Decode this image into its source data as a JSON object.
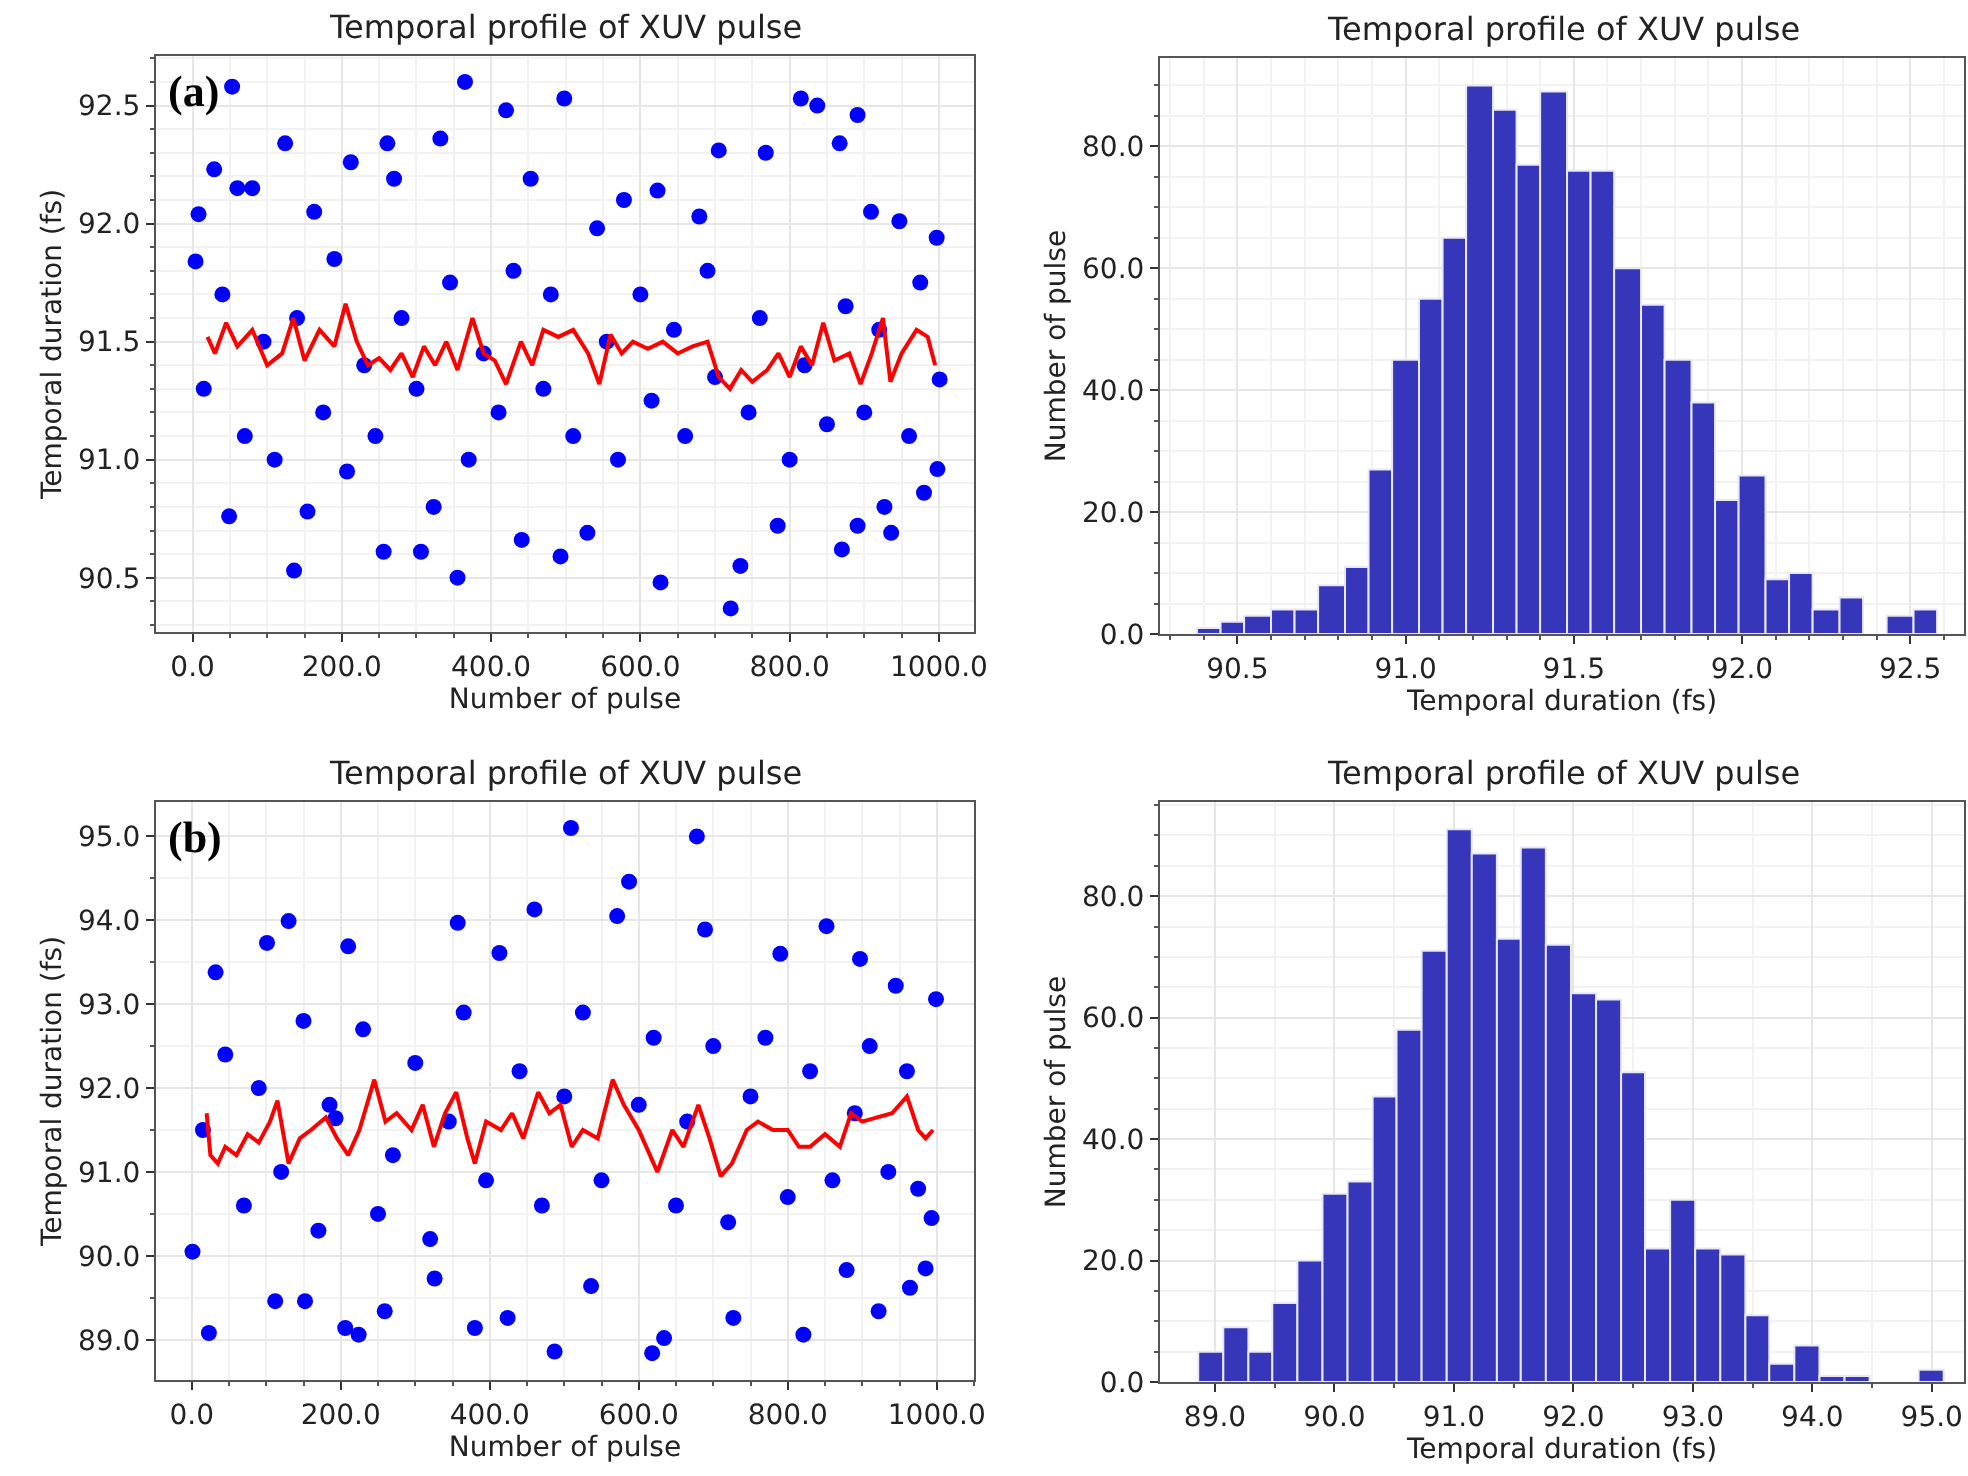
{
  "chart_data": [
    {
      "type": "scatter",
      "title": "Temporal profile of XUV pulse",
      "xlabel": "Number of pulse",
      "ylabel": "Temporal duration (fs)",
      "annotations": [
        "(a)"
      ],
      "grid": true,
      "xlim": [
        -49,
        1047
      ],
      "ylim": [
        90.27,
        92.71
      ],
      "xticks": [
        {
          "value": 0,
          "label": "0.0"
        },
        {
          "value": 200,
          "label": "200.0"
        },
        {
          "value": 400,
          "label": "400.0"
        },
        {
          "value": 600,
          "label": "600.0"
        },
        {
          "value": 800,
          "label": "800.0"
        },
        {
          "value": 1000,
          "label": "1000.0"
        }
      ],
      "yticks": [
        {
          "value": 90.5,
          "label": "90.5"
        },
        {
          "value": 91.0,
          "label": "91.0"
        },
        {
          "value": 91.5,
          "label": "91.5"
        },
        {
          "value": 92.0,
          "label": "92.0"
        },
        {
          "value": 92.5,
          "label": "92.5"
        }
      ],
      "series": [
        {
          "type": "scatter",
          "marker": "circle",
          "color": "#0000ff",
          "x": [
            4,
            8,
            15,
            29,
            40,
            49,
            53,
            60,
            70,
            80,
            95,
            110,
            124,
            136,
            140,
            154,
            163,
            175,
            190,
            207,
            212,
            230,
            245,
            256,
            261,
            270,
            280,
            300,
            306,
            323,
            332,
            345,
            355,
            365,
            370,
            390,
            410,
            420,
            430,
            441,
            453,
            470,
            480,
            493,
            498,
            510,
            529,
            542,
            555,
            570,
            578,
            600,
            615,
            623,
            627,
            645,
            660,
            679,
            690,
            700,
            705,
            721,
            734,
            745,
            760,
            768,
            784,
            800,
            815,
            820,
            837,
            850,
            867,
            870,
            875,
            891,
            891,
            900,
            909,
            920,
            927,
            936,
            947,
            960,
            975,
            980,
            997,
            998,
            1001
          ],
          "values": [
            91.84,
            92.04,
            91.3,
            92.23,
            91.7,
            90.76,
            92.58,
            92.15,
            91.1,
            92.15,
            91.5,
            91.0,
            92.34,
            90.53,
            91.6,
            90.78,
            92.05,
            91.2,
            91.85,
            90.95,
            92.26,
            91.4,
            91.1,
            90.61,
            92.34,
            92.19,
            91.6,
            91.3,
            90.61,
            90.8,
            92.36,
            91.75,
            90.5,
            92.6,
            91.0,
            91.45,
            91.2,
            92.48,
            91.8,
            90.66,
            92.19,
            91.3,
            91.7,
            90.59,
            92.53,
            91.1,
            90.69,
            91.98,
            91.5,
            91.0,
            92.1,
            91.7,
            91.25,
            92.14,
            90.48,
            91.55,
            91.1,
            92.03,
            91.8,
            91.35,
            92.31,
            90.37,
            90.55,
            91.2,
            91.6,
            92.3,
            90.72,
            91.0,
            92.53,
            91.4,
            92.5,
            91.15,
            92.34,
            90.62,
            91.65,
            92.46,
            90.72,
            91.2,
            92.05,
            91.55,
            90.8,
            90.69,
            92.01,
            91.1,
            91.75,
            90.86,
            91.94,
            90.96,
            91.34
          ]
        },
        {
          "type": "line",
          "color": "#ff0000",
          "x": [
            20,
            30,
            45,
            60,
            80,
            100,
            120,
            135,
            150,
            170,
            190,
            205,
            220,
            235,
            250,
            265,
            280,
            295,
            310,
            325,
            340,
            355,
            375,
            390,
            405,
            420,
            440,
            455,
            470,
            490,
            510,
            530,
            545,
            560,
            575,
            590,
            610,
            630,
            650,
            670,
            690,
            705,
            720,
            735,
            750,
            770,
            785,
            800,
            815,
            830,
            845,
            860,
            880,
            895,
            910,
            925,
            935,
            950,
            970,
            985,
            995
          ],
          "values": [
            91.52,
            91.45,
            91.58,
            91.48,
            91.55,
            91.4,
            91.45,
            91.6,
            91.42,
            91.55,
            91.48,
            91.66,
            91.5,
            91.4,
            91.43,
            91.38,
            91.45,
            91.35,
            91.48,
            91.4,
            91.5,
            91.38,
            91.6,
            91.45,
            91.42,
            91.32,
            91.5,
            91.4,
            91.55,
            91.52,
            91.55,
            91.45,
            91.32,
            91.53,
            91.45,
            91.5,
            91.47,
            91.5,
            91.45,
            91.48,
            91.5,
            91.35,
            91.3,
            91.38,
            91.33,
            91.38,
            91.45,
            91.35,
            91.48,
            91.4,
            91.58,
            91.42,
            91.45,
            91.32,
            91.45,
            91.6,
            91.33,
            91.45,
            91.55,
            91.52,
            91.4
          ]
        }
      ]
    },
    {
      "type": "histogram",
      "title": "Temporal profile of XUV pulse",
      "xlabel": "Temporal duration (fs)",
      "ylabel": "Number of pulse",
      "grid": true,
      "color": "#3636bb",
      "xlim": [
        90.27,
        92.66
      ],
      "ylim": [
        0,
        94.5
      ],
      "xticks": [
        {
          "value": 90.5,
          "label": "90.5"
        },
        {
          "value": 91.0,
          "label": "91.0"
        },
        {
          "value": 91.5,
          "label": "91.5"
        },
        {
          "value": 92.0,
          "label": "92.0"
        },
        {
          "value": 92.5,
          "label": "92.5"
        }
      ],
      "yticks": [
        {
          "value": 0,
          "label": "0.0"
        },
        {
          "value": 20,
          "label": "20.0"
        },
        {
          "value": 40,
          "label": "40.0"
        },
        {
          "value": 60,
          "label": "60.0"
        },
        {
          "value": 80,
          "label": "80.0"
        }
      ],
      "bins": [
        90.38,
        90.45,
        90.52,
        90.6,
        90.67,
        90.74,
        90.82,
        90.89,
        90.96,
        91.04,
        91.11,
        91.18,
        91.26,
        91.33,
        91.4,
        91.48,
        91.55,
        91.62,
        91.7,
        91.77,
        91.85,
        91.92,
        91.99,
        92.07,
        92.14,
        92.21,
        92.29,
        92.36,
        92.43,
        92.51,
        92.58
      ],
      "values": [
        1,
        2,
        3,
        4,
        4,
        8,
        11,
        27,
        45,
        55,
        65,
        90,
        86,
        77,
        89,
        76,
        76,
        60,
        54,
        45,
        38,
        22,
        26,
        9,
        10,
        4,
        6,
        0,
        3,
        4
      ]
    },
    {
      "type": "scatter",
      "title": "Temporal profile of XUV pulse",
      "xlabel": "Number of pulse",
      "ylabel": "Temporal duration (fs)",
      "annotations": [
        "(b)"
      ],
      "grid": true,
      "xlim": [
        -48,
        1050
      ],
      "ylim": [
        88.52,
        95.41
      ],
      "xticks": [
        {
          "value": 0,
          "label": "0.0"
        },
        {
          "value": 200,
          "label": "200.0"
        },
        {
          "value": 400,
          "label": "400.0"
        },
        {
          "value": 600,
          "label": "600.0"
        },
        {
          "value": 800,
          "label": "800.0"
        },
        {
          "value": 1000,
          "label": "1000.0"
        }
      ],
      "yticks": [
        {
          "value": 89,
          "label": "89.0"
        },
        {
          "value": 90,
          "label": "90.0"
        },
        {
          "value": 91,
          "label": "91.0"
        },
        {
          "value": 92,
          "label": "92.0"
        },
        {
          "value": 93,
          "label": "93.0"
        },
        {
          "value": 94,
          "label": "94.0"
        },
        {
          "value": 95,
          "label": "95.0"
        }
      ],
      "series": [
        {
          "type": "scatter",
          "marker": "circle",
          "color": "#0000ff",
          "x": [
            1,
            15,
            23,
            32,
            45,
            70,
            90,
            101,
            112,
            120,
            130,
            150,
            152,
            170,
            185,
            193,
            206,
            210,
            224,
            230,
            250,
            259,
            270,
            300,
            320,
            326,
            345,
            357,
            365,
            380,
            395,
            413,
            424,
            440,
            460,
            470,
            487,
            500,
            509,
            525,
            536,
            550,
            571,
            587,
            600,
            618,
            620,
            634,
            650,
            665,
            678,
            689,
            700,
            720,
            727,
            750,
            770,
            790,
            800,
            821,
            830,
            852,
            860,
            879,
            890,
            897,
            910,
            922,
            935,
            945,
            960,
            964,
            975,
            985,
            993,
            999
          ],
          "values": [
            90.05,
            91.5,
            89.08,
            93.38,
            92.4,
            90.6,
            92.0,
            93.73,
            89.46,
            91.0,
            93.99,
            92.8,
            89.46,
            90.3,
            91.8,
            91.64,
            89.14,
            93.69,
            89.06,
            92.7,
            90.5,
            89.34,
            91.2,
            92.3,
            90.2,
            89.73,
            91.6,
            93.97,
            92.9,
            89.14,
            90.9,
            93.61,
            89.26,
            92.2,
            94.13,
            90.6,
            88.86,
            91.9,
            95.1,
            92.9,
            89.64,
            90.9,
            94.05,
            94.46,
            91.8,
            88.84,
            92.6,
            89.02,
            90.6,
            91.6,
            95.0,
            93.89,
            92.5,
            90.4,
            89.26,
            91.9,
            92.6,
            93.6,
            90.7,
            89.06,
            92.2,
            93.93,
            90.9,
            89.83,
            91.7,
            93.54,
            92.5,
            89.34,
            91.0,
            93.22,
            92.2,
            89.62,
            90.8,
            89.85,
            90.45,
            93.06
          ]
        },
        {
          "type": "line",
          "color": "#ff0000",
          "x": [
            20,
            25,
            35,
            45,
            60,
            75,
            90,
            105,
            115,
            130,
            145,
            160,
            180,
            195,
            210,
            225,
            245,
            260,
            275,
            295,
            310,
            325,
            340,
            355,
            370,
            380,
            395,
            415,
            430,
            445,
            465,
            480,
            495,
            510,
            525,
            545,
            565,
            580,
            600,
            615,
            625,
            645,
            660,
            680,
            695,
            710,
            725,
            745,
            760,
            780,
            800,
            815,
            830,
            850,
            870,
            885,
            900,
            920,
            940,
            960,
            975,
            985,
            995
          ],
          "values": [
            91.7,
            91.2,
            91.1,
            91.3,
            91.2,
            91.45,
            91.35,
            91.6,
            91.85,
            91.1,
            91.4,
            91.5,
            91.65,
            91.4,
            91.2,
            91.5,
            92.1,
            91.6,
            91.7,
            91.5,
            91.8,
            91.3,
            91.7,
            91.95,
            91.4,
            91.1,
            91.6,
            91.5,
            91.7,
            91.4,
            91.95,
            91.7,
            91.8,
            91.3,
            91.5,
            91.4,
            92.1,
            91.8,
            91.5,
            91.2,
            91.0,
            91.5,
            91.3,
            91.8,
            91.4,
            90.95,
            91.1,
            91.5,
            91.6,
            91.5,
            91.5,
            91.3,
            91.3,
            91.45,
            91.3,
            91.7,
            91.6,
            91.65,
            91.7,
            91.9,
            91.5,
            91.4,
            91.5
          ]
        }
      ]
    },
    {
      "type": "histogram",
      "title": "Temporal profile of XUV pulse",
      "xlabel": "Temporal duration (fs)",
      "ylabel": "Number of pulse",
      "grid": true,
      "color": "#3636bb",
      "xlim": [
        88.54,
        95.27
      ],
      "ylim": [
        0,
        95.5
      ],
      "xticks": [
        {
          "value": 89,
          "label": "89.0"
        },
        {
          "value": 90,
          "label": "90.0"
        },
        {
          "value": 91,
          "label": "91.0"
        },
        {
          "value": 92,
          "label": "92.0"
        },
        {
          "value": 93,
          "label": "93.0"
        },
        {
          "value": 94,
          "label": "94.0"
        },
        {
          "value": 95,
          "label": "95.0"
        }
      ],
      "yticks": [
        {
          "value": 0,
          "label": "0.0"
        },
        {
          "value": 20,
          "label": "20.0"
        },
        {
          "value": 40,
          "label": "40.0"
        },
        {
          "value": 60,
          "label": "60.0"
        },
        {
          "value": 80,
          "label": "80.0"
        }
      ],
      "bins": [
        88.86,
        89.07,
        89.28,
        89.48,
        89.69,
        89.9,
        90.11,
        90.32,
        90.52,
        90.73,
        90.94,
        91.15,
        91.36,
        91.56,
        91.77,
        91.98,
        92.19,
        92.4,
        92.6,
        92.81,
        93.02,
        93.23,
        93.44,
        93.64,
        93.85,
        94.06,
        94.27,
        94.48,
        94.89,
        95.1
      ],
      "values": [
        5,
        9,
        5,
        13,
        20,
        31,
        33,
        47,
        58,
        71,
        91,
        87,
        73,
        88,
        72,
        64,
        63,
        51,
        22,
        30,
        22,
        21,
        11,
        3,
        6,
        1,
        1,
        0,
        2
      ]
    }
  ]
}
